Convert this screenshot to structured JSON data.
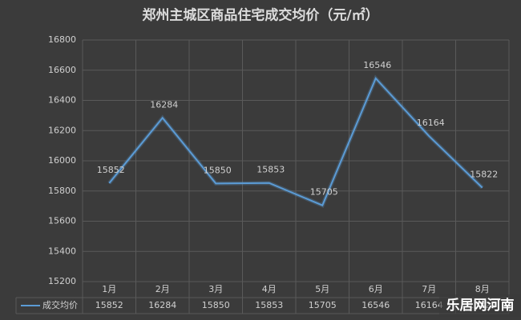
{
  "chart_data": {
    "type": "line",
    "title": "郑州主城区商品住宅成交均价（元/㎡）",
    "categories": [
      "1月",
      "2月",
      "3月",
      "4月",
      "5月",
      "6月",
      "7月",
      "8月"
    ],
    "series": [
      {
        "name": "成交均价",
        "color": "#5b9bd5",
        "values": [
          15852,
          16284,
          15850,
          15853,
          15705,
          16546,
          16164,
          15822
        ]
      }
    ],
    "ylim": [
      15200,
      16800
    ],
    "yticks": [
      15200,
      15400,
      15600,
      15800,
      16000,
      16200,
      16400,
      16600,
      16800
    ],
    "grid": true,
    "data_labels": true,
    "data_table": true
  },
  "watermark": "乐居网河南"
}
